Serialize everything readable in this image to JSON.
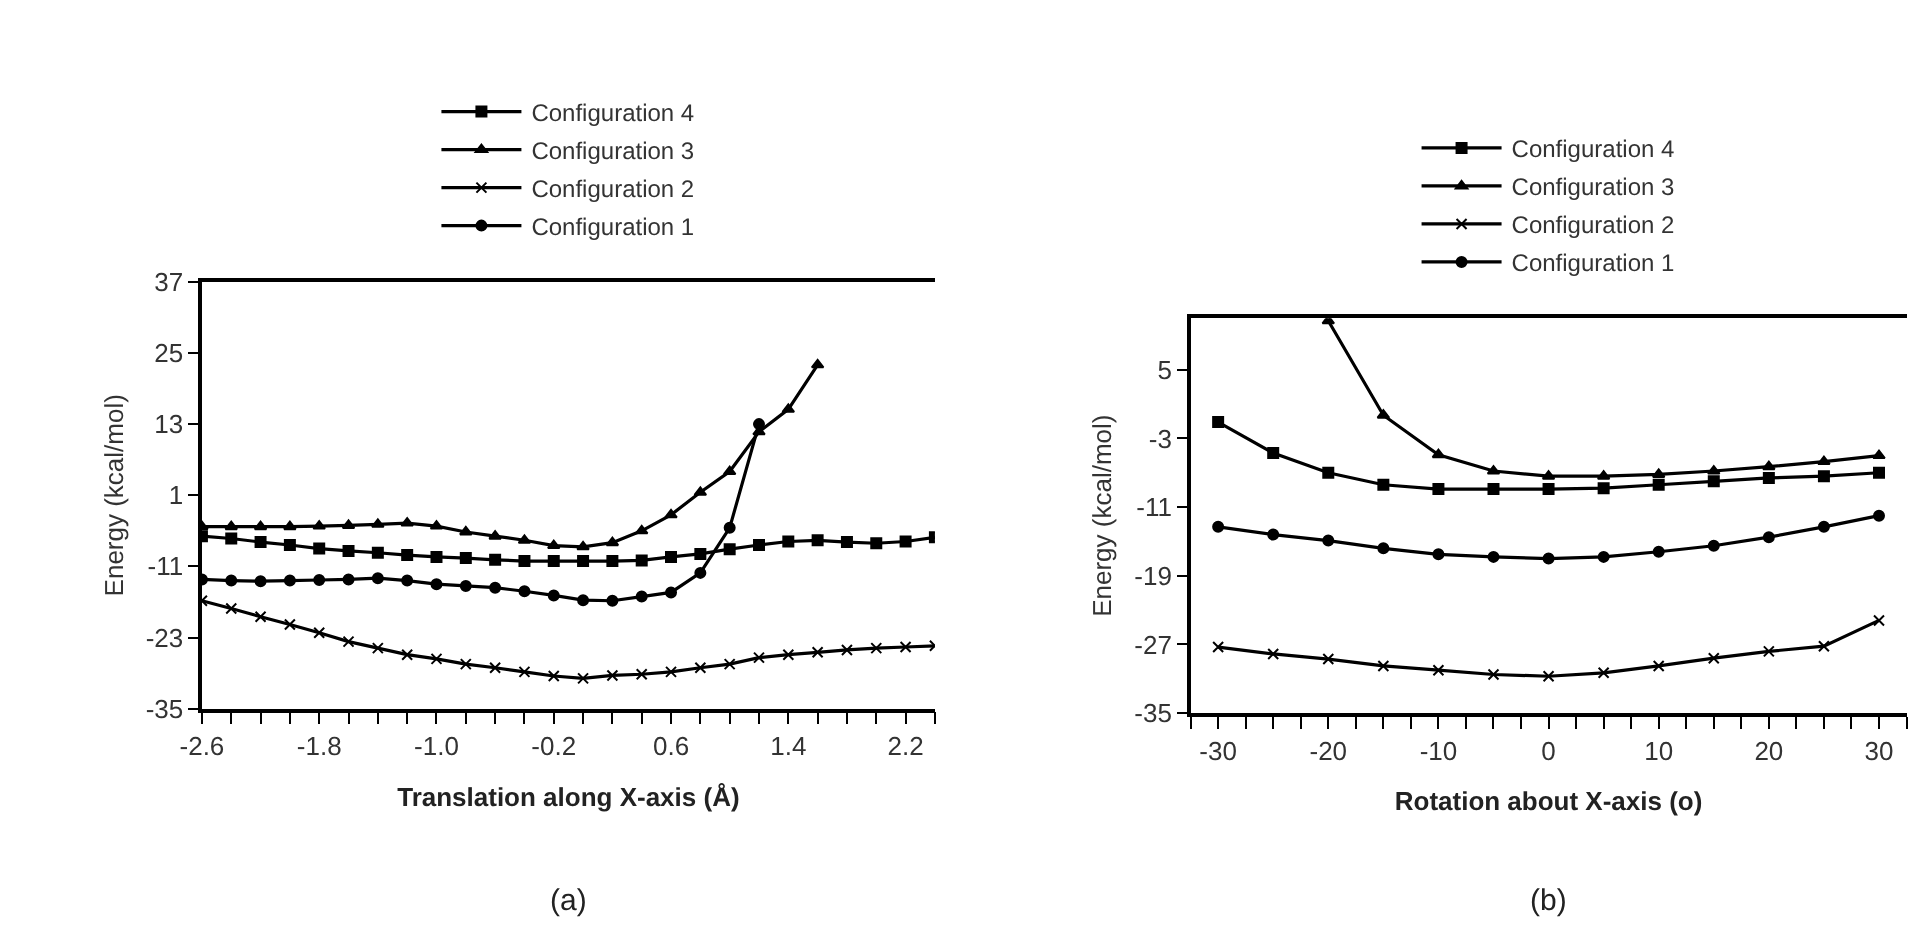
{
  "chart_data": [
    {
      "type": "line",
      "xlabel": "Translation along X-axis (Å)",
      "ylabel": "Energy (kcal/mol)",
      "annotations": [
        "(a)"
      ],
      "x": [
        -2.6,
        -2.4,
        -2.2,
        -2.0,
        -1.8,
        -1.6,
        -1.4,
        -1.2,
        -1.0,
        -0.8,
        -0.6,
        -0.4,
        -0.2,
        0.0,
        0.2,
        0.4,
        0.6,
        0.8,
        1.0,
        1.2,
        1.4,
        1.6,
        1.8,
        2.0,
        2.2,
        2.4
      ],
      "xlim": [
        -2.6,
        2.4
      ],
      "xticks": [
        -2.6,
        {
          "value": -2.4,
          "label": null
        },
        {
          "value": -2.2,
          "label": null
        },
        {
          "value": -2.0,
          "label": null
        },
        -1.8,
        {
          "value": -1.6,
          "label": null
        },
        {
          "value": -1.4,
          "label": null
        },
        {
          "value": -1.2,
          "label": null
        },
        {
          "value": -1.0,
          "label": "-1.0"
        },
        {
          "value": -0.8,
          "label": null
        },
        {
          "value": -0.6,
          "label": null
        },
        {
          "value": -0.4,
          "label": null
        },
        -0.2,
        {
          "value": 0.0,
          "label": null
        },
        {
          "value": 0.2,
          "label": null
        },
        {
          "value": 0.4,
          "label": null
        },
        0.6,
        {
          "value": 0.8,
          "label": null
        },
        {
          "value": 1.0,
          "label": null
        },
        {
          "value": 1.2,
          "label": null
        },
        1.4,
        {
          "value": 1.6,
          "label": null
        },
        {
          "value": 1.8,
          "label": null
        },
        {
          "value": 2.0,
          "label": null
        },
        2.2,
        {
          "value": 2.4,
          "label": null
        }
      ],
      "ylim": [
        -35,
        37
      ],
      "yticks": [
        -35,
        -23,
        -11,
        1,
        13,
        25,
        37
      ],
      "grid": false,
      "legend": "top",
      "series": [
        {
          "name": "Configuration 4",
          "color": "#000000",
          "marker": "square",
          "values": [
            -5.9,
            -6.3,
            -6.9,
            -7.4,
            -8.0,
            -8.4,
            -8.7,
            -9.1,
            -9.4,
            -9.6,
            -9.9,
            -10.1,
            -10.1,
            -10.1,
            -10.1,
            -10.0,
            -9.4,
            -8.9,
            -8.1,
            -7.4,
            -6.8,
            -6.6,
            -6.9,
            -7.1,
            -6.8,
            -6.1
          ]
        },
        {
          "name": "Configuration 3",
          "color": "#000000",
          "marker": "triangle",
          "values": [
            -4.3,
            -4.3,
            -4.3,
            -4.3,
            -4.2,
            -4.1,
            -3.9,
            -3.7,
            -4.2,
            -5.2,
            -5.9,
            -6.6,
            -7.5,
            -7.7,
            -7.0,
            -5.0,
            -2.3,
            1.5,
            5.0,
            11.7,
            15.5,
            23.0,
            null,
            null,
            null,
            null
          ]
        },
        {
          "name": "Configuration 2",
          "color": "#000000",
          "marker": "cross",
          "values": [
            -16.8,
            -18.1,
            -19.5,
            -20.8,
            -22.2,
            -23.7,
            -24.8,
            -25.9,
            -26.6,
            -27.5,
            -28.1,
            -28.8,
            -29.5,
            -29.9,
            -29.4,
            -29.2,
            -28.8,
            -28.1,
            -27.5,
            -26.4,
            -25.9,
            -25.5,
            -25.1,
            -24.8,
            -24.6,
            -24.4
          ]
        },
        {
          "name": "Configuration 1",
          "color": "#000000",
          "marker": "circle",
          "values": [
            -13.2,
            -13.4,
            -13.5,
            -13.4,
            -13.3,
            -13.2,
            -13.0,
            -13.4,
            -14.0,
            -14.3,
            -14.6,
            -15.2,
            -15.9,
            -16.7,
            -16.8,
            -16.1,
            -15.4,
            -12.1,
            -4.5,
            13.0,
            null,
            null,
            null,
            null,
            null,
            null
          ]
        }
      ]
    },
    {
      "type": "line",
      "xlabel": "Rotation about X-axis (o)",
      "ylabel": "Energy (kcal/mol)",
      "annotations": [
        "(b)"
      ],
      "x": [
        -30,
        -25,
        -20,
        -15,
        -10,
        -5,
        0,
        5,
        10,
        15,
        20,
        25,
        30
      ],
      "xlim": [
        -32.5,
        32.5
      ],
      "xticks": [
        {
          "value": -32.5,
          "label": null
        },
        -30,
        {
          "value": -27.5,
          "label": null
        },
        {
          "value": -25,
          "label": null
        },
        {
          "value": -22.5,
          "label": null
        },
        -20,
        {
          "value": -17.5,
          "label": null
        },
        {
          "value": -15,
          "label": null
        },
        {
          "value": -12.5,
          "label": null
        },
        -10,
        {
          "value": -7.5,
          "label": null
        },
        {
          "value": -5,
          "label": null
        },
        {
          "value": -2.5,
          "label": null
        },
        0,
        {
          "value": 2.5,
          "label": null
        },
        {
          "value": 5,
          "label": null
        },
        {
          "value": 7.5,
          "label": null
        },
        10,
        {
          "value": 12.5,
          "label": null
        },
        {
          "value": 15,
          "label": null
        },
        {
          "value": 17.5,
          "label": null
        },
        20,
        {
          "value": 22.5,
          "label": null
        },
        {
          "value": 25,
          "label": null
        },
        {
          "value": 27.5,
          "label": null
        },
        30,
        {
          "value": 32.5,
          "label": null
        }
      ],
      "ylim": [
        -35,
        11
      ],
      "yticks": [
        -35,
        -27,
        -19,
        -11,
        -3,
        5
      ],
      "grid": false,
      "legend": "top",
      "series": [
        {
          "name": "Configuration 4",
          "color": "#000000",
          "marker": "square",
          "values": [
            -1.1,
            -4.7,
            -7.0,
            -8.4,
            -8.9,
            -8.9,
            -8.9,
            -8.8,
            -8.4,
            -8.0,
            -7.6,
            -7.4,
            -7.0
          ]
        },
        {
          "name": "Configuration 3",
          "color": "#000000",
          "marker": "triangle",
          "values": [
            null,
            null,
            10.7,
            -0.3,
            -4.9,
            -6.8,
            -7.4,
            -7.4,
            -7.2,
            -6.8,
            -6.3,
            -5.7,
            -5.0
          ]
        },
        {
          "name": "Configuration 2",
          "color": "#000000",
          "marker": "cross",
          "values": [
            -27.3,
            -28.1,
            -28.7,
            -29.5,
            -30.0,
            -30.5,
            -30.7,
            -30.3,
            -29.5,
            -28.6,
            -27.8,
            -27.2,
            -24.2
          ]
        },
        {
          "name": "Configuration 1",
          "color": "#000000",
          "marker": "circle",
          "values": [
            -13.3,
            -14.2,
            -14.9,
            -15.8,
            -16.5,
            -16.8,
            -17.0,
            -16.8,
            -16.2,
            -15.5,
            -14.5,
            -13.3,
            -12.0
          ]
        }
      ]
    }
  ]
}
